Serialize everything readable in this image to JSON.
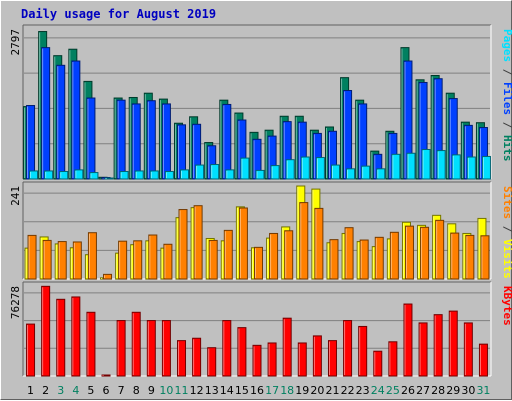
{
  "chart_data": {
    "type": "bar",
    "title": "Daily usage for August 2019",
    "categories": [
      "1",
      "2",
      "3",
      "4",
      "5",
      "6",
      "7",
      "8",
      "9",
      "10",
      "11",
      "12",
      "13",
      "14",
      "15",
      "16",
      "17",
      "18",
      "19",
      "20",
      "21",
      "22",
      "23",
      "24",
      "25",
      "26",
      "27",
      "28",
      "29",
      "30",
      "31"
    ],
    "weekend_days": [
      "3",
      "4",
      "10",
      "11",
      "17",
      "18",
      "24",
      "25",
      "31"
    ],
    "panels": [
      {
        "id": "hits-files-pages",
        "max_label": "2797",
        "max_value": 2797,
        "side_labels": [
          {
            "text": "Pages",
            "color": "#00e0ff"
          },
          {
            "text": " / ",
            "color": "#404040"
          },
          {
            "text": "Files",
            "color": "#0040ff"
          },
          {
            "text": " / ",
            "color": "#404040"
          },
          {
            "text": "Hits",
            "color": "#008060"
          }
        ],
        "series": [
          {
            "name": "Hits",
            "color": "#008060",
            "values": [
              1350,
              2750,
              2300,
              2420,
              1820,
              32,
              1510,
              1520,
              1600,
              1490,
              1040,
              1160,
              680,
              1470,
              1230,
              870,
              910,
              1170,
              1170,
              910,
              970,
              1890,
              1470,
              520,
              890,
              2450,
              1850,
              1930,
              1600,
              1060,
              1050
            ]
          },
          {
            "name": "Files",
            "color": "#0040ff",
            "values": [
              1370,
              2450,
              2120,
              2200,
              1510,
              28,
              1470,
              1400,
              1460,
              1400,
              1010,
              1020,
              620,
              1390,
              1100,
              740,
              800,
              1070,
              1060,
              850,
              890,
              1650,
              1400,
              460,
              850,
              2200,
              1800,
              1870,
              1500,
              1000,
              960
            ]
          },
          {
            "name": "Pages",
            "color": "#00e0ff",
            "values": [
              150,
              150,
              140,
              170,
              120,
              8,
              140,
              150,
              150,
              140,
              170,
              260,
              270,
              170,
              390,
              160,
              250,
              360,
              410,
              400,
              260,
              190,
              240,
              190,
              460,
              480,
              550,
              530,
              450,
              410,
              420
            ]
          }
        ]
      },
      {
        "id": "visits-sites",
        "max_label": "241",
        "max_value": 241,
        "side_labels": [
          {
            "text": "Sites",
            "color": "#ff8000"
          },
          {
            "text": " / ",
            "color": "#404040"
          },
          {
            "text": "Visits",
            "color": "#ffff00"
          }
        ],
        "series": [
          {
            "name": "Visits",
            "color": "#ffff00",
            "values": [
              80,
              109,
              91,
              81,
              63,
              3,
              67,
              89,
              99,
              80,
              159,
              185,
              105,
              99,
              187,
              81,
              106,
              135,
              241,
              233,
              94,
              118,
              97,
              84,
              104,
              147,
              139,
              165,
              143,
              118,
              157
            ]
          },
          {
            "name": "Sites",
            "color": "#ff8000",
            "values": [
              113,
              100,
              97,
              96,
              120,
              12,
              98,
              99,
              114,
              90,
              180,
              190,
              100,
              126,
              184,
              82,
              118,
              125,
              198,
              183,
              102,
              133,
              101,
              108,
              121,
              137,
              134,
              152,
              119,
              113,
              112
            ]
          }
        ]
      },
      {
        "id": "kbytes",
        "max_label": "76278",
        "max_value": 76278,
        "side_labels": [
          {
            "text": "KBytes",
            "color": "#ff0000"
          }
        ],
        "series": [
          {
            "name": "KBytes",
            "color": "#ff0000",
            "values": [
              44000,
              76000,
              65000,
              67000,
              54000,
              700,
              47000,
              54000,
              47000,
              47000,
              30000,
              32000,
              24000,
              47000,
              41000,
              26000,
              28000,
              49000,
              28000,
              34000,
              30000,
              47000,
              42000,
              21000,
              29000,
              61000,
              45000,
              52000,
              55000,
              45000,
              27000
            ]
          }
        ]
      }
    ]
  }
}
